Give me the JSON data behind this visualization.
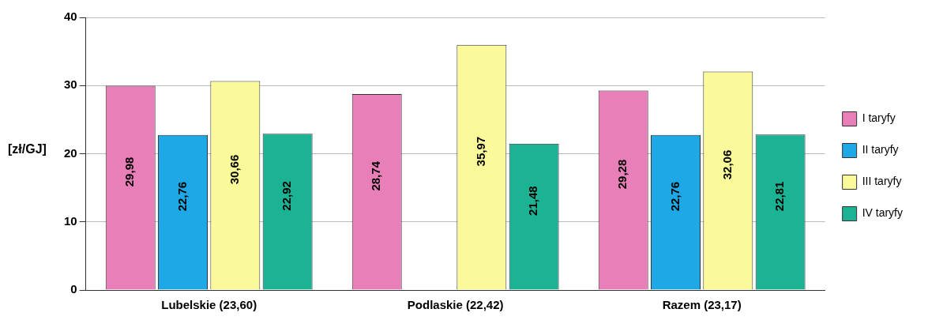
{
  "chart_data": {
    "type": "bar",
    "ylabel": "[zł/GJ]",
    "categories": [
      "Lubelskie (23,60)",
      "Podlaskie (22,42)",
      "Razem (23,17)"
    ],
    "series": [
      {
        "name": "I taryfy",
        "color": "#e87fb8",
        "values": [
          29.98,
          28.74,
          29.28
        ],
        "value_labels": [
          "29,98",
          "28,74",
          "29,28"
        ]
      },
      {
        "name": "II taryfy",
        "color": "#1ea8e6",
        "values": [
          22.76,
          null,
          22.76
        ],
        "value_labels": [
          "22,76",
          null,
          "22,76"
        ]
      },
      {
        "name": "III taryfy",
        "color": "#fafa9a",
        "values": [
          30.66,
          35.97,
          32.06
        ],
        "value_labels": [
          "30,66",
          "35,97",
          "32,06"
        ]
      },
      {
        "name": "IV taryfy",
        "color": "#1bb394",
        "values": [
          22.92,
          21.48,
          22.81
        ],
        "value_labels": [
          "22,92",
          "21,48",
          "22,81"
        ]
      }
    ],
    "ylim": [
      0,
      40
    ],
    "yticks": [
      0,
      10,
      20,
      30,
      40
    ],
    "grid": "y",
    "legend": "right"
  }
}
